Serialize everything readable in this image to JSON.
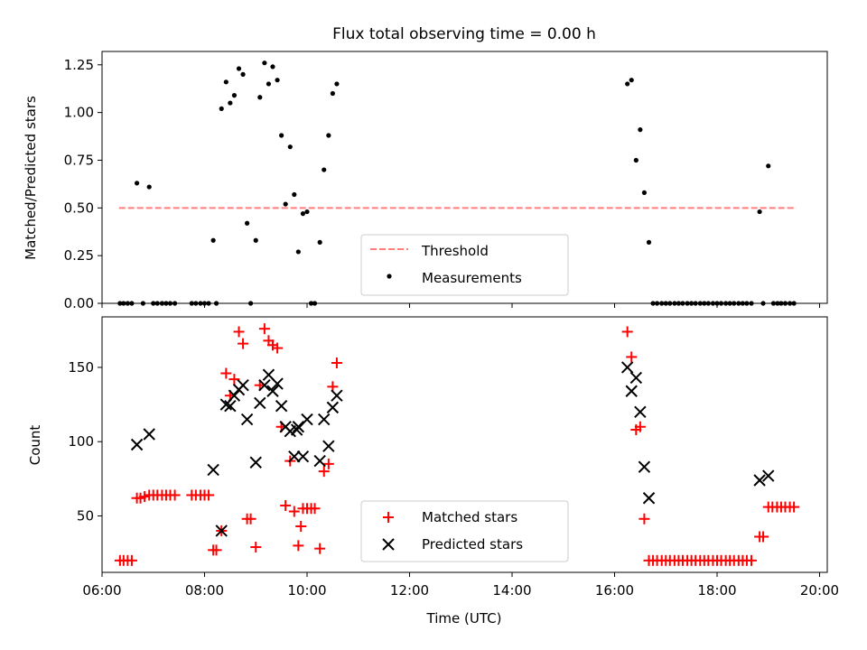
{
  "chart_data": [
    {
      "type": "scatter",
      "title": "Flux total observing time = 0.00 h",
      "ylabel": "Matched/Predicted stars",
      "xlabel": "",
      "xlim": [
        6.0,
        20.15
      ],
      "ylim": [
        0.0,
        1.32
      ],
      "xticks": [
        6,
        8,
        10,
        12,
        14,
        16,
        18,
        20
      ],
      "xtick_labels_visible": false,
      "yticks": [
        0.0,
        0.25,
        0.5,
        0.75,
        1.0,
        1.25
      ],
      "ytick_labels": [
        "0.00",
        "0.25",
        "0.50",
        "0.75",
        "1.00",
        "1.25"
      ],
      "legend_position": "lower-center",
      "threshold": {
        "name": "Threshold",
        "y": 0.5,
        "x": [
          6.33,
          19.55
        ],
        "color": "#ff7f7f",
        "style": "dashed"
      },
      "series": [
        {
          "name": "Measurements",
          "color": "#000000",
          "marker": "dot",
          "points": [
            [
              6.35,
              0
            ],
            [
              6.42,
              0
            ],
            [
              6.5,
              0
            ],
            [
              6.58,
              0
            ],
            [
              6.68,
              0.63
            ],
            [
              6.8,
              0
            ],
            [
              6.92,
              0.61
            ],
            [
              7.0,
              0
            ],
            [
              7.08,
              0
            ],
            [
              7.17,
              0
            ],
            [
              7.25,
              0
            ],
            [
              7.33,
              0
            ],
            [
              7.42,
              0
            ],
            [
              7.75,
              0
            ],
            [
              7.83,
              0
            ],
            [
              7.92,
              0
            ],
            [
              8.0,
              0
            ],
            [
              8.08,
              0
            ],
            [
              8.17,
              0.33
            ],
            [
              8.23,
              0
            ],
            [
              8.33,
              1.02
            ],
            [
              8.42,
              1.16
            ],
            [
              8.5,
              1.05
            ],
            [
              8.58,
              1.09
            ],
            [
              8.67,
              1.23
            ],
            [
              8.75,
              1.2
            ],
            [
              8.83,
              0.42
            ],
            [
              8.9,
              0
            ],
            [
              9.0,
              0.33
            ],
            [
              9.08,
              1.08
            ],
            [
              9.17,
              1.26
            ],
            [
              9.25,
              1.15
            ],
            [
              9.33,
              1.24
            ],
            [
              9.42,
              1.17
            ],
            [
              9.5,
              0.88
            ],
            [
              9.58,
              0.52
            ],
            [
              9.67,
              0.82
            ],
            [
              9.75,
              0.57
            ],
            [
              9.83,
              0.27
            ],
            [
              9.92,
              0.47
            ],
            [
              10.0,
              0.48
            ],
            [
              10.08,
              0
            ],
            [
              10.15,
              0
            ],
            [
              10.25,
              0.32
            ],
            [
              10.33,
              0.7
            ],
            [
              10.42,
              0.88
            ],
            [
              10.5,
              1.1
            ],
            [
              10.58,
              1.15
            ],
            [
              16.25,
              1.15
            ],
            [
              16.33,
              1.17
            ],
            [
              16.42,
              0.75
            ],
            [
              16.5,
              0.91
            ],
            [
              16.58,
              0.58
            ],
            [
              16.67,
              0.32
            ],
            [
              16.75,
              0
            ],
            [
              16.83,
              0
            ],
            [
              16.92,
              0
            ],
            [
              17.0,
              0
            ],
            [
              17.08,
              0
            ],
            [
              17.17,
              0
            ],
            [
              17.25,
              0
            ],
            [
              17.33,
              0
            ],
            [
              17.42,
              0
            ],
            [
              17.5,
              0
            ],
            [
              17.58,
              0
            ],
            [
              17.67,
              0
            ],
            [
              17.75,
              0
            ],
            [
              17.83,
              0
            ],
            [
              17.92,
              0
            ],
            [
              18.0,
              0
            ],
            [
              18.08,
              0
            ],
            [
              18.17,
              0
            ],
            [
              18.25,
              0
            ],
            [
              18.33,
              0
            ],
            [
              18.42,
              0
            ],
            [
              18.5,
              0
            ],
            [
              18.58,
              0
            ],
            [
              18.67,
              0
            ],
            [
              18.83,
              0.48
            ],
            [
              18.9,
              0
            ],
            [
              19.0,
              0.72
            ],
            [
              19.1,
              0
            ],
            [
              19.18,
              0
            ],
            [
              19.25,
              0
            ],
            [
              19.33,
              0
            ],
            [
              19.42,
              0
            ],
            [
              19.5,
              0
            ]
          ]
        }
      ]
    },
    {
      "type": "scatter",
      "title": "",
      "xlabel": "Time (UTC)",
      "ylabel": "Count",
      "xlim": [
        6.0,
        20.15
      ],
      "ylim": [
        12,
        184
      ],
      "xticks": [
        6,
        8,
        10,
        12,
        14,
        16,
        18,
        20
      ],
      "xtick_labels": [
        "06:00",
        "08:00",
        "10:00",
        "12:00",
        "14:00",
        "16:00",
        "18:00",
        "20:00"
      ],
      "yticks": [
        50,
        100,
        150
      ],
      "ytick_labels": [
        "50",
        "100",
        "150"
      ],
      "legend_position": "lower-center",
      "series": [
        {
          "name": "Matched stars",
          "color": "#ff0000",
          "marker": "plus",
          "points": [
            [
              6.35,
              20
            ],
            [
              6.42,
              20
            ],
            [
              6.5,
              20
            ],
            [
              6.58,
              20
            ],
            [
              6.68,
              62
            ],
            [
              6.75,
              62
            ],
            [
              6.83,
              63
            ],
            [
              6.92,
              64
            ],
            [
              7.0,
              64
            ],
            [
              7.08,
              64
            ],
            [
              7.17,
              64
            ],
            [
              7.25,
              64
            ],
            [
              7.33,
              64
            ],
            [
              7.42,
              64
            ],
            [
              7.75,
              64
            ],
            [
              7.83,
              64
            ],
            [
              7.92,
              64
            ],
            [
              8.0,
              64
            ],
            [
              8.08,
              64
            ],
            [
              8.17,
              27
            ],
            [
              8.23,
              27
            ],
            [
              8.33,
              40
            ],
            [
              8.42,
              146
            ],
            [
              8.5,
              131
            ],
            [
              8.58,
              142
            ],
            [
              8.67,
              174
            ],
            [
              8.75,
              166
            ],
            [
              8.83,
              48
            ],
            [
              8.9,
              48
            ],
            [
              9.0,
              29
            ],
            [
              9.08,
              138
            ],
            [
              9.17,
              176
            ],
            [
              9.25,
              168
            ],
            [
              9.33,
              165
            ],
            [
              9.42,
              163
            ],
            [
              9.5,
              110
            ],
            [
              9.58,
              57
            ],
            [
              9.67,
              87
            ],
            [
              9.75,
              53
            ],
            [
              9.83,
              30
            ],
            [
              9.88,
              43
            ],
            [
              9.92,
              55
            ],
            [
              10.0,
              55
            ],
            [
              10.08,
              55
            ],
            [
              10.15,
              55
            ],
            [
              10.25,
              28
            ],
            [
              10.33,
              80
            ],
            [
              10.42,
              85
            ],
            [
              10.5,
              137
            ],
            [
              10.58,
              153
            ],
            [
              16.25,
              174
            ],
            [
              16.33,
              157
            ],
            [
              16.42,
              108
            ],
            [
              16.5,
              110
            ],
            [
              16.58,
              48
            ],
            [
              16.67,
              20
            ],
            [
              16.75,
              20
            ],
            [
              16.83,
              20
            ],
            [
              16.92,
              20
            ],
            [
              17.0,
              20
            ],
            [
              17.08,
              20
            ],
            [
              17.17,
              20
            ],
            [
              17.25,
              20
            ],
            [
              17.33,
              20
            ],
            [
              17.42,
              20
            ],
            [
              17.5,
              20
            ],
            [
              17.58,
              20
            ],
            [
              17.67,
              20
            ],
            [
              17.75,
              20
            ],
            [
              17.83,
              20
            ],
            [
              17.92,
              20
            ],
            [
              18.0,
              20
            ],
            [
              18.08,
              20
            ],
            [
              18.17,
              20
            ],
            [
              18.25,
              20
            ],
            [
              18.33,
              20
            ],
            [
              18.42,
              20
            ],
            [
              18.5,
              20
            ],
            [
              18.58,
              20
            ],
            [
              18.67,
              20
            ],
            [
              18.83,
              36
            ],
            [
              18.9,
              36
            ],
            [
              19.0,
              56
            ],
            [
              19.08,
              56
            ],
            [
              19.17,
              56
            ],
            [
              19.25,
              56
            ],
            [
              19.33,
              56
            ],
            [
              19.42,
              56
            ],
            [
              19.5,
              56
            ]
          ]
        },
        {
          "name": "Predicted stars",
          "color": "#000000",
          "marker": "x",
          "points": [
            [
              6.68,
              98
            ],
            [
              6.92,
              105
            ],
            [
              8.17,
              81
            ],
            [
              8.33,
              40
            ],
            [
              8.42,
              125
            ],
            [
              8.5,
              124
            ],
            [
              8.58,
              131
            ],
            [
              8.67,
              135
            ],
            [
              8.75,
              138
            ],
            [
              8.83,
              115
            ],
            [
              9.0,
              86
            ],
            [
              9.08,
              126
            ],
            [
              9.17,
              138
            ],
            [
              9.25,
              145
            ],
            [
              9.33,
              134
            ],
            [
              9.42,
              139
            ],
            [
              9.5,
              124
            ],
            [
              9.58,
              110
            ],
            [
              9.67,
              107
            ],
            [
              9.75,
              90
            ],
            [
              9.8,
              108
            ],
            [
              9.83,
              110
            ],
            [
              9.92,
              90
            ],
            [
              10.0,
              115
            ],
            [
              10.25,
              87
            ],
            [
              10.33,
              115
            ],
            [
              10.42,
              97
            ],
            [
              10.5,
              123
            ],
            [
              10.58,
              131
            ],
            [
              16.25,
              150
            ],
            [
              16.33,
              134
            ],
            [
              16.42,
              143
            ],
            [
              16.5,
              120
            ],
            [
              16.58,
              83
            ],
            [
              16.67,
              62
            ],
            [
              18.83,
              74
            ],
            [
              19.0,
              77
            ]
          ]
        }
      ]
    }
  ]
}
